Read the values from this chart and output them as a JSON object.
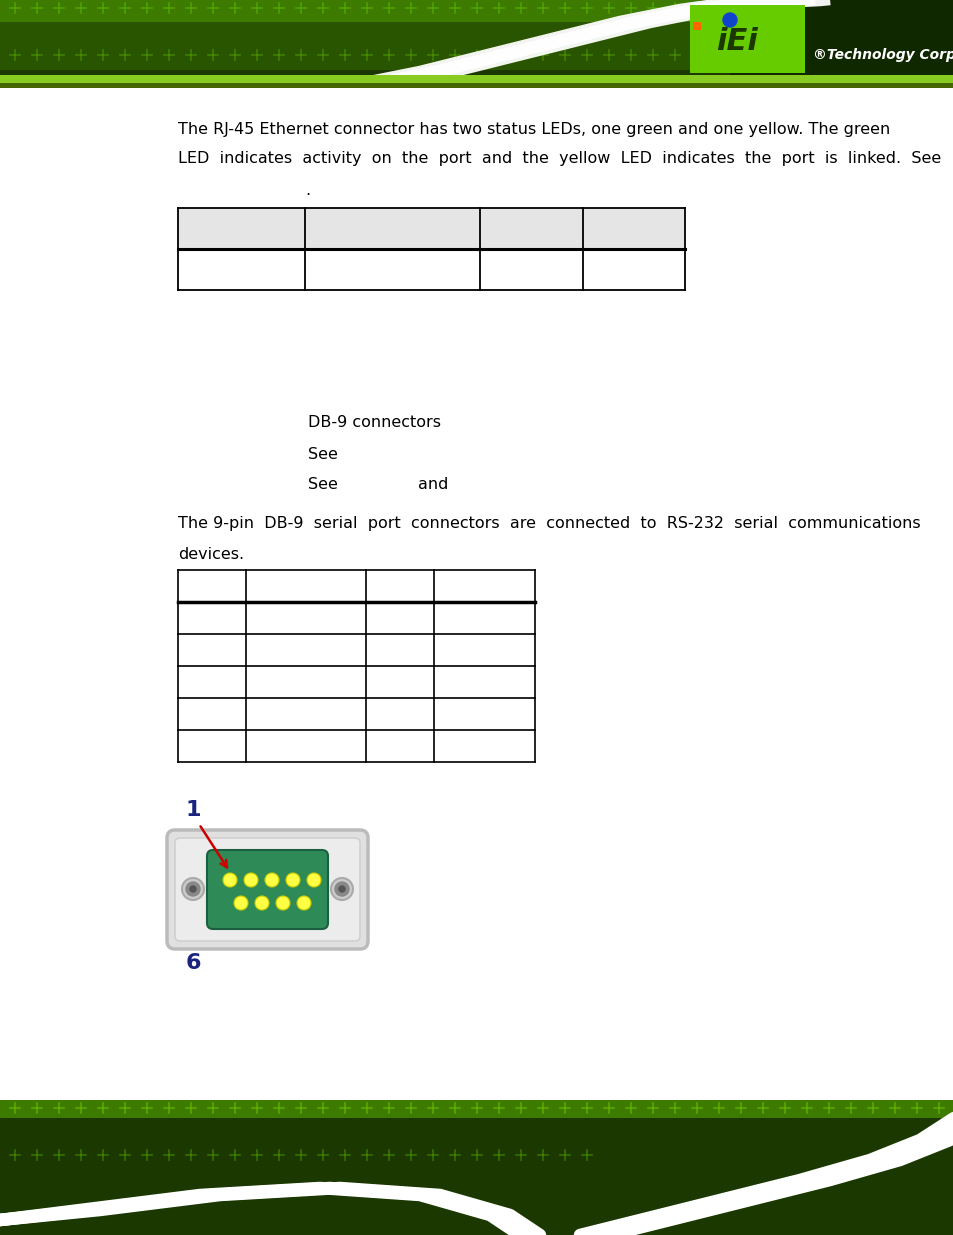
{
  "bg_color": "#ffffff",
  "text_color": "#000000",
  "text_line1": "The RJ-45 Ethernet connector has two status LEDs, one green and one yellow. The green",
  "text_line2": "LED  indicates  activity  on  the  port  and  the  yellow  LED  indicates  the  port  is  linked.  See",
  "text_dot": ".",
  "text_db9": "DB-9 connectors",
  "text_see1": "See",
  "text_see2": "See",
  "text_and": "and",
  "text_body1": "The 9-pin  DB-9  serial  port  connectors  are  connected  to  RS-232  serial  communications",
  "text_body2": "devices.",
  "header_dark_green": "#2d5a00",
  "header_mid_green": "#4a9200",
  "header_bright_green": "#66cc00",
  "footer_dark_green": "#2d5a00",
  "footer_bright_green": "#66cc00",
  "connector_shell_color": "#d8d8d8",
  "connector_shell_edge": "#aaaaaa",
  "connector_inner_color": "#2e8b57",
  "connector_pin_color": "#ffff44",
  "label_color": "#1a237e",
  "arrow_color": "#cc0000",
  "table1_header_bg": "#e8e8e8",
  "table_line_color": "#000000"
}
